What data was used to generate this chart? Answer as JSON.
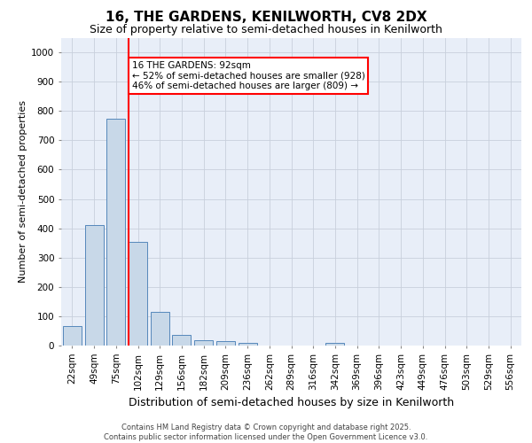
{
  "title": "16, THE GARDENS, KENILWORTH, CV8 2DX",
  "subtitle": "Size of property relative to semi-detached houses in Kenilworth",
  "xlabel": "Distribution of semi-detached houses by size in Kenilworth",
  "ylabel": "Number of semi-detached properties",
  "footer": "Contains HM Land Registry data © Crown copyright and database right 2025.\nContains public sector information licensed under the Open Government Licence v3.0.",
  "categories": [
    "22sqm",
    "49sqm",
    "75sqm",
    "102sqm",
    "129sqm",
    "156sqm",
    "182sqm",
    "209sqm",
    "236sqm",
    "262sqm",
    "289sqm",
    "316sqm",
    "342sqm",
    "369sqm",
    "396sqm",
    "423sqm",
    "449sqm",
    "476sqm",
    "503sqm",
    "529sqm",
    "556sqm"
  ],
  "values": [
    65,
    410,
    775,
    355,
    115,
    35,
    18,
    15,
    10,
    0,
    0,
    0,
    10,
    0,
    0,
    0,
    0,
    0,
    0,
    0,
    0
  ],
  "bar_color": "#c8d8e8",
  "bar_edge_color": "#5588bb",
  "red_line_x": 2.575,
  "highlight_text_line1": "16 THE GARDENS: 92sqm",
  "highlight_text_line2": "← 52% of semi-detached houses are smaller (928)",
  "highlight_text_line3": "46% of semi-detached houses are larger (809) →",
  "ylim": [
    0,
    1050
  ],
  "yticks": [
    0,
    100,
    200,
    300,
    400,
    500,
    600,
    700,
    800,
    900,
    1000
  ],
  "grid_color": "#c8d0dc",
  "background_color": "#e8eef8",
  "title_fontsize": 11,
  "subtitle_fontsize": 9,
  "ylabel_fontsize": 8,
  "xlabel_fontsize": 9,
  "tick_fontsize": 7.5,
  "annotation_fontsize": 7.5
}
